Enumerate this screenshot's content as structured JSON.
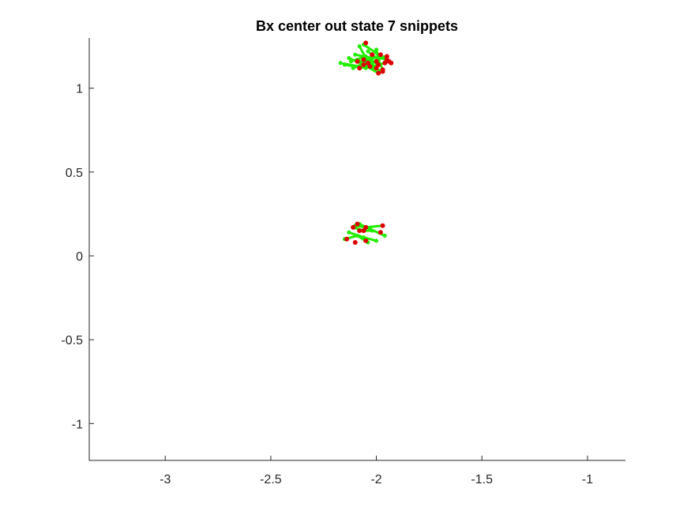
{
  "chart_data": {
    "type": "scatter",
    "title": "Bx  center out state 7 snippets",
    "xlabel": "",
    "ylabel": "",
    "xlim": [
      -3.36,
      -0.82
    ],
    "ylim": [
      -1.22,
      1.3
    ],
    "grid": false,
    "x_ticks": [
      -3,
      -2.5,
      -2,
      -1.5,
      -1
    ],
    "x_tick_labels": [
      "-3",
      "-2.5",
      "-2",
      "-1.5",
      "-1"
    ],
    "y_ticks": [
      -1,
      -0.5,
      0,
      0.5,
      1
    ],
    "y_tick_labels": [
      "-1",
      "-0.5",
      "0",
      "0.5",
      "1"
    ],
    "colors": {
      "snippet": "#22ee00",
      "endpoint": "#dd0000",
      "axis": "#262626"
    },
    "snippets": [
      [
        [
          -2.17,
          1.15
        ],
        [
          -2.08,
          1.13
        ],
        [
          -2.0,
          1.16
        ]
      ],
      [
        [
          -2.15,
          1.14
        ],
        [
          -2.05,
          1.12
        ],
        [
          -1.96,
          1.15
        ]
      ],
      [
        [
          -2.1,
          1.2
        ],
        [
          -2.02,
          1.18
        ],
        [
          -1.95,
          1.19
        ]
      ],
      [
        [
          -2.08,
          1.25
        ],
        [
          -2.05,
          1.18
        ],
        [
          -2.0,
          1.12
        ]
      ],
      [
        [
          -2.06,
          1.26
        ],
        [
          -2.0,
          1.21
        ],
        [
          -1.94,
          1.16
        ]
      ],
      [
        [
          -2.13,
          1.18
        ],
        [
          -2.06,
          1.14
        ],
        [
          -1.99,
          1.09
        ]
      ],
      [
        [
          -2.11,
          1.12
        ],
        [
          -2.04,
          1.16
        ],
        [
          -1.98,
          1.2
        ]
      ],
      [
        [
          -2.04,
          1.22
        ],
        [
          -1.99,
          1.17
        ],
        [
          -1.97,
          1.11
        ]
      ],
      [
        [
          -2.09,
          1.17
        ],
        [
          -2.03,
          1.13
        ],
        [
          -1.97,
          1.1
        ]
      ],
      [
        [
          -2.12,
          1.16
        ],
        [
          -2.05,
          1.19
        ],
        [
          -1.99,
          1.14
        ]
      ],
      [
        [
          -2.07,
          1.14
        ],
        [
          -2.02,
          1.19
        ],
        [
          -1.95,
          1.17
        ]
      ],
      [
        [
          -2.0,
          1.23
        ],
        [
          -1.99,
          1.18
        ],
        [
          -2.03,
          1.13
        ]
      ],
      [
        [
          -2.1,
          0.18
        ],
        [
          -2.05,
          0.17
        ],
        [
          -1.97,
          0.18
        ]
      ],
      [
        [
          -2.13,
          0.14
        ],
        [
          -2.06,
          0.11
        ],
        [
          -2.0,
          0.09
        ]
      ],
      [
        [
          -2.15,
          0.1
        ],
        [
          -2.09,
          0.12
        ],
        [
          -2.04,
          0.08
        ]
      ],
      [
        [
          -2.08,
          0.19
        ],
        [
          -2.03,
          0.16
        ],
        [
          -1.96,
          0.12
        ]
      ],
      [
        [
          -2.11,
          0.17
        ],
        [
          -2.06,
          0.15
        ],
        [
          -2.02,
          0.15
        ]
      ]
    ],
    "endpoints": [
      [
        -2.05,
        1.27
      ],
      [
        -2.0,
        1.16
      ],
      [
        -1.96,
        1.15
      ],
      [
        -1.95,
        1.19
      ],
      [
        -2.0,
        1.12
      ],
      [
        -1.94,
        1.16
      ],
      [
        -1.99,
        1.09
      ],
      [
        -1.98,
        1.2
      ],
      [
        -1.97,
        1.11
      ],
      [
        -1.97,
        1.1
      ],
      [
        -1.99,
        1.14
      ],
      [
        -1.95,
        1.17
      ],
      [
        -2.03,
        1.13
      ],
      [
        -2.06,
        1.17
      ],
      [
        -2.04,
        1.15
      ],
      [
        -2.09,
        1.16
      ],
      [
        -2.02,
        1.2
      ],
      [
        -1.93,
        1.15
      ],
      [
        -2.08,
        1.12
      ],
      [
        -2.06,
        1.14
      ],
      [
        -2.09,
        0.19
      ],
      [
        -2.11,
        0.17
      ],
      [
        -2.05,
        0.17
      ],
      [
        -2.06,
        0.15
      ],
      [
        -1.97,
        0.18
      ],
      [
        -2.14,
        0.1
      ],
      [
        -2.1,
        0.08
      ],
      [
        -2.05,
        0.09
      ],
      [
        -1.98,
        0.14
      ],
      [
        -2.08,
        0.15
      ]
    ]
  }
}
